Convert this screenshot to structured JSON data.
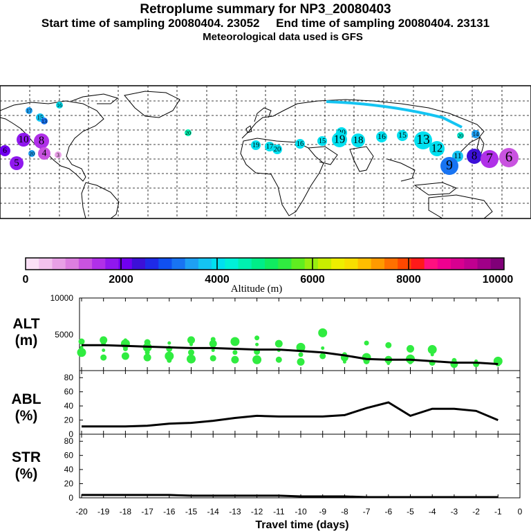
{
  "header": {
    "title": "Retroplume summary for NP3_20080403",
    "line2": "Start time of sampling 20080404. 23052     End time of sampling 20080404. 23131",
    "line3": "Meteorological data used is GFS"
  },
  "colorbar": {
    "label": "Altitude (m)",
    "ticks": [
      "0",
      "2000",
      "4000",
      "6000",
      "8000",
      "10000"
    ],
    "colors": [
      "#fbe0f6",
      "#f3c2ee",
      "#e8a0e6",
      "#dc7ee0",
      "#c953e0",
      "#b030e8",
      "#9018ee",
      "#7000f0",
      "#3c10d8",
      "#1f2ae8",
      "#1050f0",
      "#1874f2",
      "#1ea0f4",
      "#14c4f2",
      "#00e0f0",
      "#00f0d8",
      "#00f0b0",
      "#00ee88",
      "#10ec60",
      "#30ec40",
      "#60ee20",
      "#98ee10",
      "#c8ee00",
      "#eeee00",
      "#f8de00",
      "#ffbe00",
      "#ff9a00",
      "#ff7000",
      "#ff4800",
      "#ff1a1a",
      "#ff1080",
      "#f00090",
      "#d80090",
      "#c00090",
      "#a00088",
      "#800078"
    ]
  },
  "map": {
    "markers": [
      {
        "t": "17",
        "c": "#1ea0f4"
      },
      {
        "t": "15",
        "c": "#14c4f2"
      },
      {
        "t": "13",
        "c": "#1874f2"
      },
      {
        "t": "16",
        "c": "#00e0f0"
      },
      {
        "t": "20",
        "c": "#00f0b0"
      },
      {
        "t": "10",
        "c": "#9018ee"
      },
      {
        "t": "8",
        "c": "#b030e8"
      },
      {
        "t": "6",
        "c": "#7000f0"
      },
      {
        "t": "4",
        "c": "#c953e0"
      },
      {
        "t": "3",
        "c": "#e8a0e6"
      },
      {
        "t": "20",
        "c": "#1ea0f4"
      },
      {
        "t": "19",
        "c": "#00e0f0"
      },
      {
        "t": "17",
        "c": "#00e0f0"
      },
      {
        "t": "20",
        "c": "#00e0f0"
      },
      {
        "t": "16",
        "c": "#00e0f0"
      },
      {
        "t": "15",
        "c": "#00e0f0"
      },
      {
        "t": "20",
        "c": "#00e0f0"
      },
      {
        "t": "19",
        "c": "#00e0f0"
      },
      {
        "t": "18",
        "c": "#00e0f0"
      },
      {
        "t": "16",
        "c": "#00e0f0"
      },
      {
        "t": "15",
        "c": "#00e0f0"
      },
      {
        "t": "13",
        "c": "#00e0f0"
      },
      {
        "t": "12",
        "c": "#00e0f0"
      },
      {
        "t": "11",
        "c": "#14c4f2"
      },
      {
        "t": "9",
        "c": "#1874f2"
      },
      {
        "t": "8",
        "c": "#3c10d8"
      },
      {
        "t": "7",
        "c": "#b030e8"
      },
      {
        "t": "6",
        "c": "#c953e0"
      },
      {
        "t": "5",
        "c": "#9018ee"
      },
      {
        "t": "14",
        "c": "#1ea0f4"
      },
      {
        "t": "20",
        "c": "#00f0d8"
      }
    ]
  },
  "panels": {
    "alt": {
      "label1": "ALT",
      "label2": "(m)"
    },
    "abl": {
      "label1": "ABL",
      "label2": "(%)"
    },
    "str": {
      "label1": "STR",
      "label2": "(%)"
    }
  },
  "chart_data": [
    {
      "type": "line",
      "title": "ALT (m)",
      "x": [
        -20,
        -19,
        -18,
        -17,
        -16,
        -15,
        -14,
        -13,
        -12,
        -11,
        -10,
        -9,
        -8,
        -7,
        -6,
        -5,
        -4,
        -3,
        -2,
        -1
      ],
      "values": [
        3500,
        3500,
        3400,
        3300,
        3200,
        3100,
        3100,
        3000,
        2900,
        2900,
        2700,
        2500,
        2100,
        1600,
        1500,
        1500,
        1300,
        1100,
        1100,
        900
      ],
      "ylim": [
        0,
        10000
      ],
      "yticks": [
        "10000",
        "5000"
      ],
      "scatter_color": "#30ec40",
      "scatter_points": [
        [
          -20,
          3200
        ],
        [
          -20,
          4000
        ],
        [
          -20,
          2500
        ],
        [
          -19,
          3800
        ],
        [
          -19,
          4200
        ],
        [
          -19,
          2800
        ],
        [
          -19,
          1800
        ],
        [
          -18,
          3700
        ],
        [
          -18,
          3000
        ],
        [
          -18,
          2000
        ],
        [
          -18,
          4200
        ],
        [
          -17,
          3900
        ],
        [
          -17,
          3200
        ],
        [
          -17,
          2500
        ],
        [
          -17,
          1800
        ],
        [
          -16,
          3800
        ],
        [
          -16,
          3000
        ],
        [
          -16,
          2000
        ],
        [
          -16,
          1400
        ],
        [
          -15,
          4200
        ],
        [
          -15,
          3600
        ],
        [
          -15,
          2500
        ],
        [
          -15,
          1600
        ],
        [
          -14,
          4300
        ],
        [
          -14,
          3700
        ],
        [
          -14,
          2800
        ],
        [
          -14,
          1700
        ],
        [
          -13,
          4000
        ],
        [
          -13,
          2500
        ],
        [
          -13,
          1500
        ],
        [
          -12,
          3600
        ],
        [
          -12,
          2600
        ],
        [
          -12,
          1500
        ],
        [
          -12,
          4500
        ],
        [
          -11,
          3700
        ],
        [
          -11,
          2800
        ],
        [
          -11,
          1500
        ],
        [
          -10,
          3200
        ],
        [
          -10,
          2200
        ],
        [
          -10,
          1200
        ],
        [
          -9,
          3100
        ],
        [
          -9,
          2000
        ],
        [
          -9,
          5200
        ],
        [
          -8,
          2200
        ],
        [
          -8,
          1800
        ],
        [
          -8,
          1200
        ],
        [
          -7,
          1300
        ],
        [
          -7,
          1800
        ],
        [
          -7,
          3800
        ],
        [
          -6,
          1500
        ],
        [
          -6,
          1000
        ],
        [
          -6,
          3500
        ],
        [
          -5,
          1600
        ],
        [
          -5,
          1200
        ],
        [
          -5,
          3000
        ],
        [
          -4,
          2200
        ],
        [
          -4,
          1100
        ],
        [
          -4,
          2900
        ],
        [
          -3,
          1400
        ],
        [
          -3,
          900
        ],
        [
          -2,
          1300
        ],
        [
          -2,
          900
        ],
        [
          -1,
          1300
        ],
        [
          -1,
          900
        ]
      ]
    },
    {
      "type": "line",
      "title": "ABL (%)",
      "x": [
        -20,
        -19,
        -18,
        -17,
        -16,
        -15,
        -14,
        -13,
        -12,
        -11,
        -10,
        -9,
        -8,
        -7,
        -6,
        -5,
        -4,
        -3,
        -2,
        -1
      ],
      "values": [
        11,
        11,
        11,
        12,
        15,
        16,
        19,
        23,
        26,
        25,
        25,
        25,
        27,
        37,
        45,
        26,
        36,
        36,
        33,
        20
      ],
      "ylim": [
        0,
        90
      ],
      "yticks": [
        "80",
        "60",
        "40",
        "20",
        "0"
      ]
    },
    {
      "type": "line",
      "title": "STR (%)",
      "x": [
        -20,
        -19,
        -18,
        -17,
        -16,
        -15,
        -14,
        -13,
        -12,
        -11,
        -10,
        -9,
        -8,
        -7,
        -6,
        -5,
        -4,
        -3,
        -2,
        -1
      ],
      "values": [
        4,
        4,
        4,
        4,
        4,
        3,
        3,
        3,
        3,
        3,
        2,
        2,
        2,
        1,
        1,
        1,
        1,
        1,
        1,
        1
      ],
      "ylim": [
        0,
        90
      ],
      "yticks": [
        "80",
        "60",
        "40",
        "20",
        "0"
      ]
    }
  ],
  "xaxis": {
    "label": "Travel time (days)",
    "ticks": [
      "-20",
      "-19",
      "-18",
      "-17",
      "-16",
      "-15",
      "-14",
      "-13",
      "-12",
      "-11",
      "-10",
      "-9",
      "-8",
      "-7",
      "-6",
      "-5",
      "-4",
      "-3",
      "-2",
      "-1",
      "0"
    ]
  }
}
